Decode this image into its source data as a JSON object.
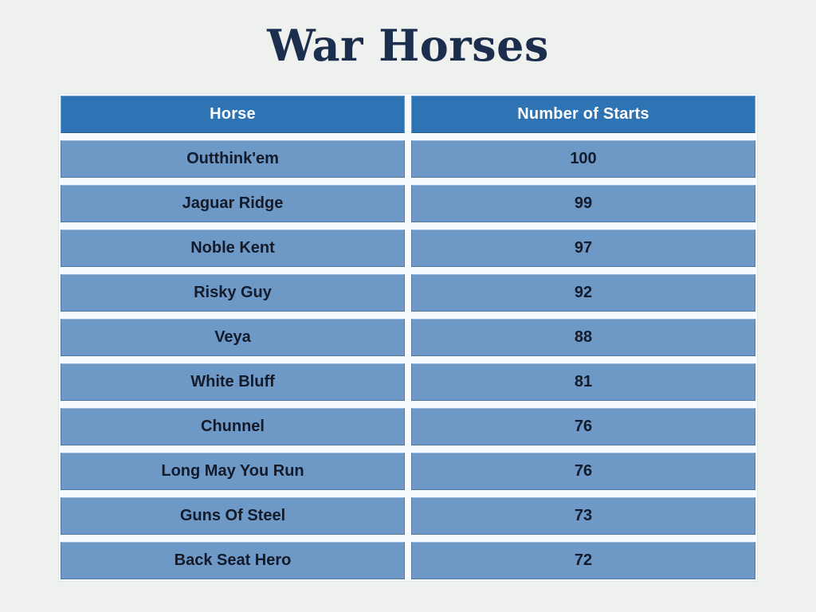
{
  "title": "War Horses",
  "colors": {
    "page_bg": "#eef1ee",
    "title": "#1c2e4e",
    "header_bg": "#2e74b5",
    "header_text": "#fbfdff",
    "row_bg": "#6e99c6",
    "row_text": "#131b2a",
    "gap": "#f8fbfe"
  },
  "table": {
    "columns": [
      "Horse",
      "Number of Starts"
    ],
    "rows": [
      [
        "Outthink'em",
        "100"
      ],
      [
        "Jaguar Ridge",
        "99"
      ],
      [
        "Noble Kent",
        "97"
      ],
      [
        "Risky Guy",
        "92"
      ],
      [
        "Veya",
        "88"
      ],
      [
        "White Bluff",
        "81"
      ],
      [
        "Chunnel",
        "76"
      ],
      [
        "Long May You Run",
        "76"
      ],
      [
        "Guns Of Steel",
        "73"
      ],
      [
        "Back Seat Hero",
        "72"
      ]
    ]
  },
  "chart_data": {
    "type": "table",
    "title": "War Horses",
    "columns": [
      "Horse",
      "Number of Starts"
    ],
    "categories": [
      "Outthink'em",
      "Jaguar Ridge",
      "Noble Kent",
      "Risky Guy",
      "Veya",
      "White Bluff",
      "Chunnel",
      "Long May You Run",
      "Guns Of Steel",
      "Back Seat Hero"
    ],
    "values": [
      100,
      99,
      97,
      92,
      88,
      81,
      76,
      76,
      73,
      72
    ],
    "legend": "none",
    "grid": "off"
  }
}
